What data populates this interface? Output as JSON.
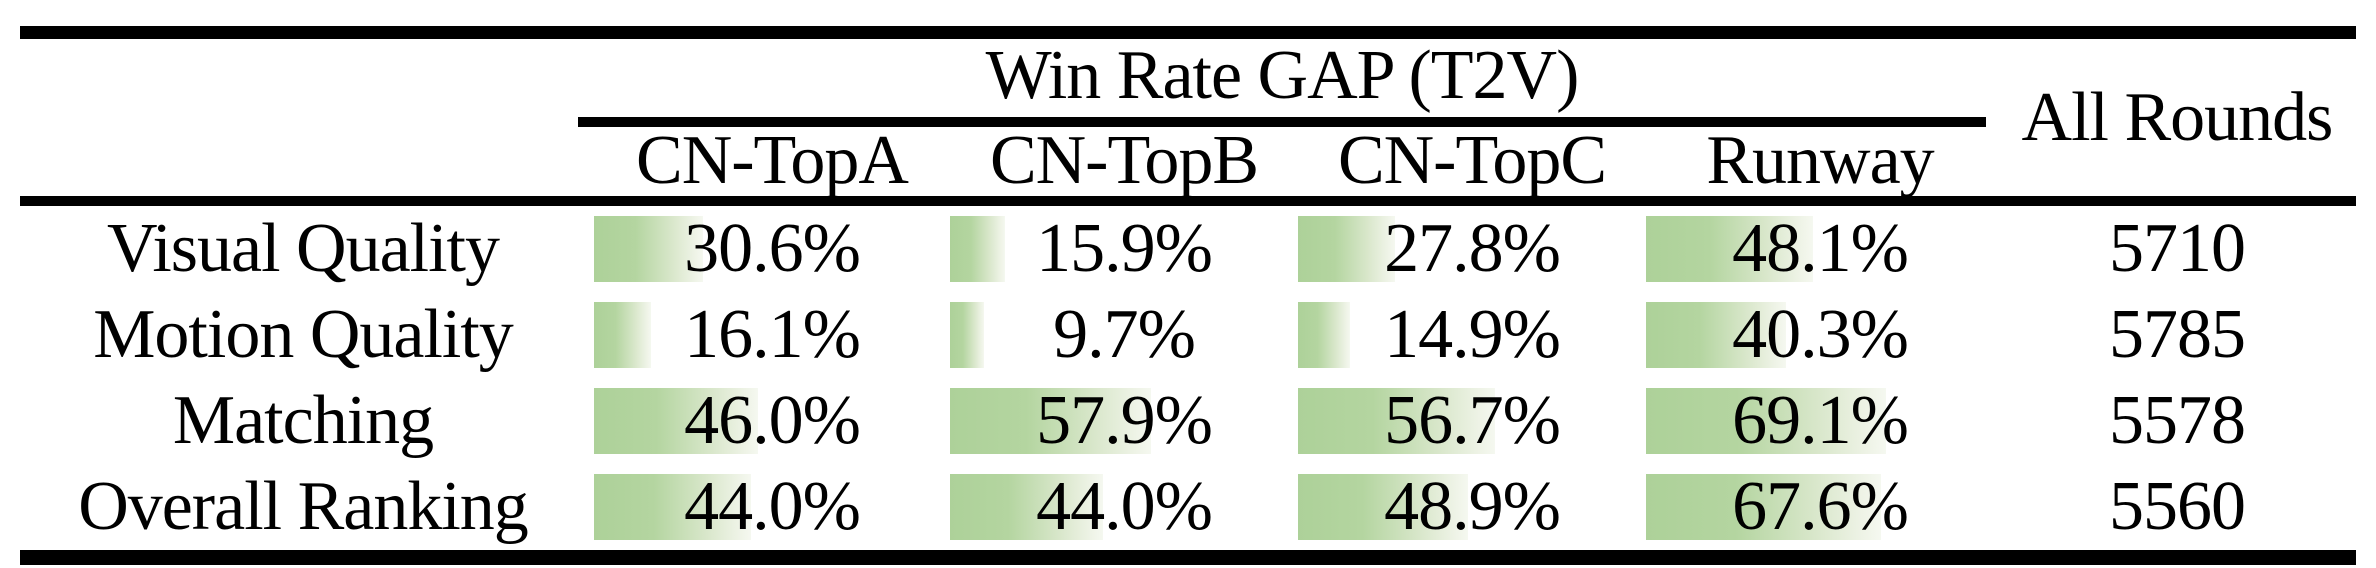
{
  "table": {
    "group_header": "Win Rate GAP (T2V)",
    "all_rounds_header": "All Rounds",
    "columns": [
      "CN-TopA",
      "CN-TopB",
      "CN-TopC",
      "Runway"
    ],
    "rows": [
      {
        "label": "Visual Quality",
        "cells": [
          "30.6%",
          "15.9%",
          "27.8%",
          "48.1%"
        ],
        "bar_pct": [
          30.6,
          15.9,
          27.8,
          48.1
        ],
        "all_rounds": "5710"
      },
      {
        "label": "Motion Quality",
        "cells": [
          "16.1%",
          "9.7%",
          "14.9%",
          "40.3%"
        ],
        "bar_pct": [
          16.1,
          9.7,
          14.9,
          40.3
        ],
        "all_rounds": "5785"
      },
      {
        "label": "Matching",
        "cells": [
          "46.0%",
          "57.9%",
          "56.7%",
          "69.1%"
        ],
        "bar_pct": [
          46.0,
          57.9,
          56.7,
          69.1
        ],
        "all_rounds": "5578"
      },
      {
        "label": "Overall Ranking",
        "cells": [
          "44.0%",
          "44.0%",
          "48.9%",
          "67.6%"
        ],
        "bar_pct": [
          44.0,
          44.0,
          48.9,
          67.6
        ],
        "all_rounds": "5560"
      }
    ],
    "colors": {
      "bar_green": "#add199",
      "bar_fade": "#f5f8f0",
      "rule_black": "#000000",
      "text": "#000000",
      "background": "#ffffff"
    }
  },
  "chart_data": {
    "type": "table",
    "title": "Win Rate GAP (T2V)",
    "columns": [
      "CN-TopA",
      "CN-TopB",
      "CN-TopC",
      "Runway",
      "All Rounds"
    ],
    "row_labels": [
      "Visual Quality",
      "Motion Quality",
      "Matching",
      "Overall Ranking"
    ],
    "series": [
      {
        "name": "Visual Quality",
        "win_rate_gap_pct": [
          30.6,
          15.9,
          27.8,
          48.1
        ],
        "all_rounds": 5710
      },
      {
        "name": "Motion Quality",
        "win_rate_gap_pct": [
          16.1,
          9.7,
          14.9,
          40.3
        ],
        "all_rounds": 5785
      },
      {
        "name": "Matching",
        "win_rate_gap_pct": [
          46.0,
          57.9,
          56.7,
          69.1
        ],
        "all_rounds": 5578
      },
      {
        "name": "Overall Ranking",
        "win_rate_gap_pct": [
          44.0,
          44.0,
          48.9,
          67.6
        ],
        "all_rounds": 5560
      }
    ],
    "bar_scale": "bar width equals value percent of cell width",
    "legend_position": "none",
    "grid": false
  }
}
